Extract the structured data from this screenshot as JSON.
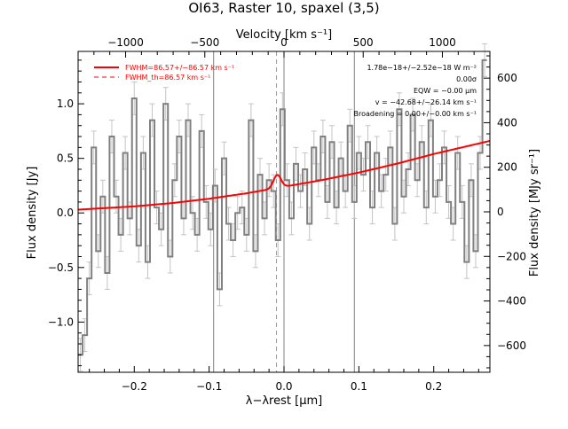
{
  "chart_data": {
    "type": "line",
    "title": "OI63, Raster 10, spaxel (3,5)",
    "xlabel": "λ−λrest [μm]",
    "ylabel_left": "Flux density [Jy]",
    "ylabel_right": "Flux density [MJy sr⁻¹]",
    "xlabel_top": "Velocity [km s⁻¹]",
    "xlim": [
      -0.275,
      0.275
    ],
    "ylim": [
      -1.46,
      1.48
    ],
    "ylim_right": [
      -720,
      720
    ],
    "velocity_lim": [
      -1300,
      1300
    ],
    "x_ticks": [
      -0.2,
      -0.1,
      0.0,
      0.1,
      0.2
    ],
    "x_tick_labels": [
      "−0.2",
      "−0.1",
      "0.0",
      "0.1",
      "0.2"
    ],
    "y_ticks": [
      -1.0,
      -0.5,
      0.0,
      0.5,
      1.0
    ],
    "y_tick_labels": [
      "−1.0",
      "−0.5",
      "0.0",
      "0.5",
      "1.0"
    ],
    "y_right_ticks": [
      -600,
      -400,
      -200,
      0,
      200,
      400,
      600
    ],
    "y_right_tick_labels": [
      "−600",
      "−400",
      "−200",
      "0",
      "200",
      "400",
      "600"
    ],
    "top_ticks": [
      -1000,
      -500,
      0,
      500,
      1000
    ],
    "top_tick_labels": [
      "−1000",
      "−500",
      "0",
      "500",
      "1000"
    ],
    "vlines_solid": [
      -0.094,
      0.0,
      0.094
    ],
    "vline_dashed": -0.01,
    "legend": [
      {
        "label": "FWHM=86.57+/−86.57 km s⁻¹",
        "style": "solid",
        "color": "#ff0000"
      },
      {
        "label": "FWHM_th=86.57 km s⁻¹",
        "style": "dashed",
        "color": "#ff0000"
      }
    ],
    "annotations": [
      "1.78e−18+/−2.52e−18 W m⁻²",
      "0.00σ",
      "EQW = −0.00 μm",
      "v = −42.68+/−26.14 km s⁻¹",
      "Broadening = 0.00+/−0.00 km s⁻¹"
    ],
    "series": [
      {
        "name": "data",
        "color": "#808080",
        "x": [
          -0.272,
          -0.266,
          -0.26,
          -0.254,
          -0.248,
          -0.242,
          -0.236,
          -0.23,
          -0.224,
          -0.218,
          -0.212,
          -0.206,
          -0.2,
          -0.194,
          -0.188,
          -0.182,
          -0.176,
          -0.17,
          -0.164,
          -0.158,
          -0.152,
          -0.146,
          -0.14,
          -0.134,
          -0.128,
          -0.122,
          -0.116,
          -0.11,
          -0.104,
          -0.098,
          -0.092,
          -0.086,
          -0.08,
          -0.074,
          -0.068,
          -0.062,
          -0.056,
          -0.05,
          -0.044,
          -0.038,
          -0.032,
          -0.026,
          -0.02,
          -0.014,
          -0.008,
          -0.002,
          0.004,
          0.01,
          0.016,
          0.022,
          0.028,
          0.034,
          0.04,
          0.046,
          0.052,
          0.058,
          0.064,
          0.07,
          0.076,
          0.082,
          0.088,
          0.094,
          0.1,
          0.106,
          0.112,
          0.118,
          0.124,
          0.13,
          0.136,
          0.142,
          0.148,
          0.154,
          0.16,
          0.166,
          0.172,
          0.178,
          0.184,
          0.19,
          0.196,
          0.202,
          0.208,
          0.214,
          0.22,
          0.226,
          0.232,
          0.238,
          0.244,
          0.25,
          0.256,
          0.262,
          0.268
        ],
        "y": [
          -1.3,
          -1.12,
          -0.6,
          0.6,
          -0.35,
          0.15,
          -0.55,
          0.7,
          0.15,
          -0.2,
          0.55,
          -0.05,
          1.05,
          -0.3,
          0.55,
          -0.45,
          0.85,
          0.05,
          -0.15,
          1.0,
          -0.4,
          0.3,
          0.7,
          -0.05,
          0.85,
          0.0,
          -0.2,
          0.75,
          0.1,
          -0.15,
          0.25,
          -0.7,
          0.5,
          -0.1,
          -0.25,
          0.0,
          0.05,
          -0.2,
          0.85,
          -0.35,
          0.35,
          -0.05,
          0.3,
          0.2,
          -0.25,
          0.95,
          0.3,
          -0.05,
          0.45,
          0.2,
          0.4,
          -0.1,
          0.6,
          0.3,
          0.7,
          0.1,
          0.65,
          0.05,
          0.5,
          0.2,
          0.8,
          0.1,
          0.55,
          0.35,
          0.65,
          0.05,
          0.55,
          0.2,
          0.35,
          0.6,
          -0.1,
          0.95,
          0.15,
          0.4,
          0.9,
          0.3,
          0.65,
          0.05,
          0.85,
          0.15,
          0.3,
          0.6,
          0.1,
          -0.1,
          0.55,
          0.1,
          -0.45,
          0.3,
          -0.35,
          0.55,
          1.4
        ],
        "err": 0.15
      },
      {
        "name": "fit",
        "color": "#ff0000",
        "continuum_x": [
          -0.275,
          -0.25,
          -0.2,
          -0.15,
          -0.1,
          -0.05,
          0.0,
          0.05,
          0.1,
          0.15,
          0.2,
          0.25,
          0.275
        ],
        "continuum_y": [
          0.03,
          0.04,
          0.06,
          0.09,
          0.13,
          0.18,
          0.24,
          0.3,
          0.37,
          0.45,
          0.54,
          0.62,
          0.66
        ],
        "line_center": -0.009,
        "line_amplitude": 0.12,
        "line_sigma": 0.005
      }
    ]
  }
}
